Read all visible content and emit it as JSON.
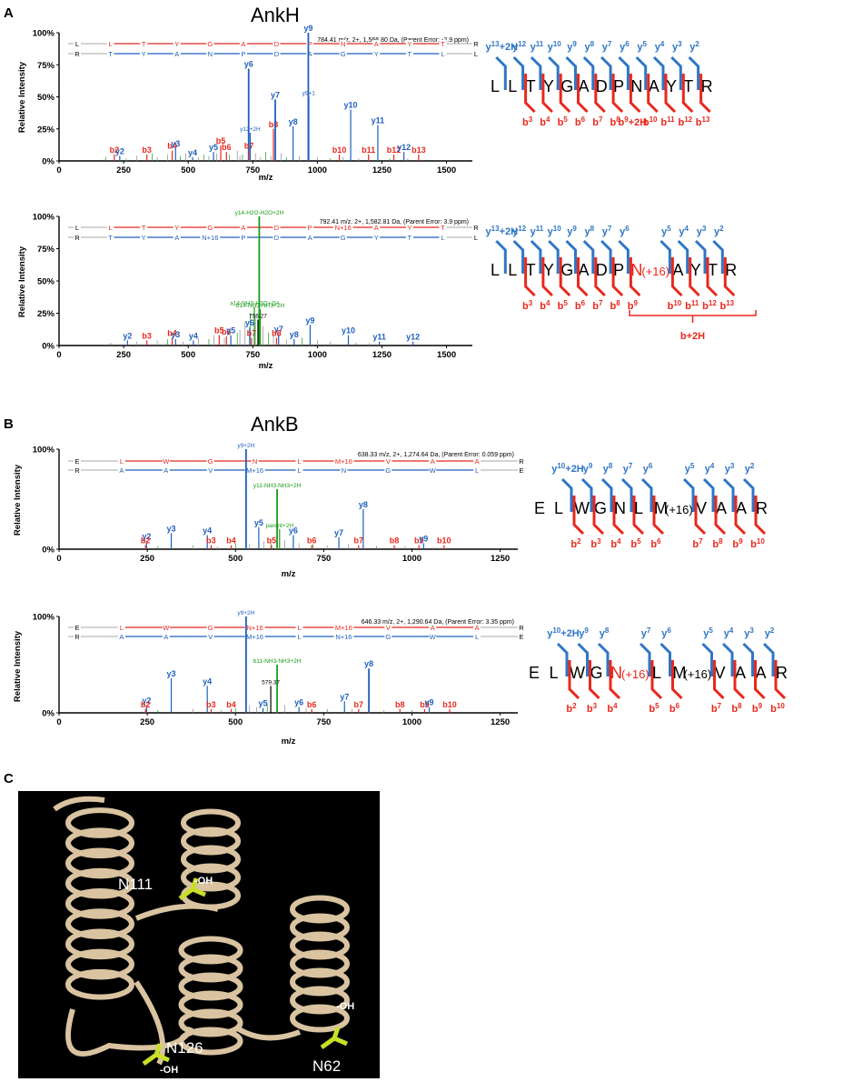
{
  "panel_labels": [
    "A",
    "B",
    "C"
  ],
  "section_titles": {
    "ankh": "AnkH",
    "ankb": "AnkB"
  },
  "colors": {
    "blue": "#1f5fbf",
    "red": "#e8281e",
    "green": "#1a9a1a",
    "grey": "#8a8a8a",
    "fragment_blue": "#2f76c5",
    "fragment_red": "#e8281e"
  },
  "axis_common": {
    "ylabel": "Relative Intensity",
    "xlabel": "m/z",
    "yticks": [
      "0%",
      "25%",
      "50%",
      "75%",
      "100%"
    ]
  },
  "chart_data": [
    {
      "type": "bar",
      "id": "ankh-top",
      "xlabel": "m/z",
      "ylabel": "Relative Intensity",
      "xlim": [
        0,
        1600
      ],
      "ylim": [
        0,
        100
      ],
      "xticks": [
        0,
        250,
        500,
        750,
        1000,
        1250,
        1500
      ],
      "yticks": [
        "0%",
        "25%",
        "50%",
        "75%",
        "100%"
      ],
      "header_text": "784.41 m/z, 2+, 1,566.80 Da,  (Parent Error: -2.9 ppm)",
      "b_row": [
        "L",
        "L",
        "T",
        "Y",
        "G",
        "A",
        "D",
        "P",
        "N",
        "A",
        "Y",
        "T",
        "R"
      ],
      "y_row": [
        "R",
        "T",
        "Y",
        "A",
        "N",
        "P",
        "D",
        "A",
        "G",
        "Y",
        "T",
        "L",
        "L"
      ],
      "peaks": [
        {
          "mz": 214,
          "i": 5,
          "label": "b2",
          "s": "b"
        },
        {
          "mz": 235,
          "i": 4,
          "label": "y2",
          "s": "y"
        },
        {
          "mz": 340,
          "i": 5,
          "label": "b3",
          "s": "b"
        },
        {
          "mz": 438,
          "i": 8,
          "label": "b4",
          "s": "b"
        },
        {
          "mz": 451,
          "i": 10,
          "label": "y3",
          "s": "y"
        },
        {
          "mz": 517,
          "i": 3,
          "label": "y4",
          "s": "y"
        },
        {
          "mz": 598,
          "i": 7,
          "label": "y5",
          "s": "y"
        },
        {
          "mz": 626,
          "i": 12,
          "label": "b5",
          "s": "b"
        },
        {
          "mz": 648,
          "i": 7,
          "label": "b6",
          "s": "b"
        },
        {
          "mz": 734,
          "i": 72,
          "label": "y6",
          "s": "y"
        },
        {
          "mz": 735,
          "i": 8,
          "label": "b7",
          "s": "b"
        },
        {
          "mz": 740,
          "i": 22,
          "label": "y12+2H",
          "s": "y"
        },
        {
          "mz": 830,
          "i": 25,
          "label": "b8",
          "s": "b"
        },
        {
          "mz": 837,
          "i": 48,
          "label": "y7",
          "s": "y"
        },
        {
          "mz": 906,
          "i": 27,
          "label": "y8",
          "s": "y"
        },
        {
          "mz": 965,
          "i": 100,
          "label": "y9",
          "s": "y"
        },
        {
          "mz": 966,
          "i": 50,
          "label": "y9+1",
          "s": "y"
        },
        {
          "mz": 1085,
          "i": 5,
          "label": "b10",
          "s": "b"
        },
        {
          "mz": 1129,
          "i": 40,
          "label": "y10",
          "s": "y"
        },
        {
          "mz": 1198,
          "i": 5,
          "label": "b11",
          "s": "b"
        },
        {
          "mz": 1234,
          "i": 28,
          "label": "y11",
          "s": "y"
        },
        {
          "mz": 1296,
          "i": 5,
          "label": "b12",
          "s": "b"
        },
        {
          "mz": 1335,
          "i": 7,
          "label": "y12",
          "s": "y"
        },
        {
          "mz": 1392,
          "i": 5,
          "label": "b13",
          "s": "b"
        }
      ],
      "noise": [
        [
          180,
          3
        ],
        [
          260,
          2
        ],
        [
          300,
          4
        ],
        [
          360,
          6
        ],
        [
          380,
          3
        ],
        [
          420,
          5
        ],
        [
          470,
          4
        ],
        [
          490,
          6
        ],
        [
          540,
          3
        ],
        [
          560,
          5
        ],
        [
          580,
          4
        ],
        [
          610,
          6
        ],
        [
          660,
          5
        ],
        [
          690,
          8
        ],
        [
          700,
          4
        ],
        [
          710,
          5
        ],
        [
          760,
          6
        ],
        [
          780,
          3
        ],
        [
          800,
          7
        ],
        [
          820,
          4
        ],
        [
          860,
          6
        ],
        [
          880,
          3
        ],
        [
          930,
          4
        ],
        [
          1000,
          3
        ],
        [
          1050,
          2
        ],
        [
          1100,
          3
        ],
        [
          1160,
          2
        ],
        [
          1280,
          2
        ],
        [
          1350,
          2
        ]
      ]
    },
    {
      "type": "bar",
      "id": "ankh-bottom",
      "xlabel": "m/z",
      "ylabel": "Relative Intensity",
      "xlim": [
        0,
        1600
      ],
      "ylim": [
        0,
        100
      ],
      "xticks": [
        0,
        250,
        500,
        750,
        1000,
        1250,
        1500
      ],
      "yticks": [
        "0%",
        "25%",
        "50%",
        "75%",
        "100%"
      ],
      "header_text": "792.41 m/z, 2+, 1,582.81 Da,  (Parent Error: 3.9 ppm)",
      "b_row": [
        "L",
        "L",
        "T",
        "Y",
        "G",
        "A",
        "D",
        "P",
        "N+16",
        "A",
        "Y",
        "T",
        "R"
      ],
      "y_row": [
        "R",
        "T",
        "Y",
        "A",
        "N+16",
        "P",
        "D",
        "A",
        "G",
        "Y",
        "T",
        "L",
        "L"
      ],
      "peaks": [
        {
          "mz": 265,
          "i": 4,
          "label": "y2",
          "s": "y"
        },
        {
          "mz": 340,
          "i": 4,
          "label": "b3",
          "s": "b"
        },
        {
          "mz": 438,
          "i": 6,
          "label": "b4",
          "s": "b"
        },
        {
          "mz": 451,
          "i": 5,
          "label": "y3",
          "s": "y"
        },
        {
          "mz": 520,
          "i": 4,
          "label": "y4",
          "s": "y"
        },
        {
          "mz": 620,
          "i": 8,
          "label": "b5",
          "s": "b"
        },
        {
          "mz": 648,
          "i": 7,
          "label": "b6",
          "s": "b"
        },
        {
          "mz": 665,
          "i": 8,
          "label": "y5",
          "s": "y"
        },
        {
          "mz": 738,
          "i": 14,
          "label": "y6",
          "s": "y"
        },
        {
          "mz": 745,
          "i": 6,
          "label": "b7",
          "s": "b"
        },
        {
          "mz": 775,
          "i": 100,
          "label": "y14-H2O-H2O+2H",
          "s": "g"
        },
        {
          "mz": 756,
          "i": 30,
          "label": "a14-NH3-H2O+2H",
          "s": "g"
        },
        {
          "mz": 779,
          "i": 28,
          "label": "b14-NH3-NH3+2H",
          "s": "g"
        },
        {
          "mz": 770,
          "i": 20,
          "label": "756.27",
          "s": "k"
        },
        {
          "mz": 850,
          "i": 9,
          "label": "y7",
          "s": "y"
        },
        {
          "mz": 842,
          "i": 6,
          "label": "b8",
          "s": "b"
        },
        {
          "mz": 910,
          "i": 5,
          "label": "y8",
          "s": "y"
        },
        {
          "mz": 972,
          "i": 16,
          "label": "y9",
          "s": "y"
        },
        {
          "mz": 1120,
          "i": 8,
          "label": "y10",
          "s": "y"
        },
        {
          "mz": 1240,
          "i": 3,
          "label": "y11",
          "s": "y"
        },
        {
          "mz": 1370,
          "i": 3,
          "label": "y12",
          "s": "y"
        }
      ],
      "noise": [
        [
          200,
          2
        ],
        [
          300,
          3
        ],
        [
          380,
          4
        ],
        [
          420,
          5
        ],
        [
          480,
          3
        ],
        [
          540,
          6
        ],
        [
          580,
          5
        ],
        [
          600,
          8
        ],
        [
          640,
          6
        ],
        [
          690,
          10
        ],
        [
          700,
          12
        ],
        [
          720,
          18
        ],
        [
          740,
          25
        ],
        [
          760,
          22
        ],
        [
          790,
          15
        ],
        [
          810,
          10
        ],
        [
          830,
          8
        ],
        [
          880,
          5
        ],
        [
          940,
          6
        ],
        [
          1000,
          4
        ],
        [
          1050,
          3
        ],
        [
          1150,
          2
        ],
        [
          1200,
          2
        ]
      ]
    },
    {
      "type": "bar",
      "id": "ankb-top",
      "xlabel": "m/z",
      "ylabel": "Relative Intensity",
      "xlim": [
        0,
        1300
      ],
      "ylim": [
        0,
        100
      ],
      "xticks": [
        0,
        250,
        500,
        750,
        1000,
        1250
      ],
      "yticks": [
        "0%",
        "100%"
      ],
      "header_text": "638.33 m/z, 2+, 1,274.64 Da,  (Parent Error: 0.059 ppm)",
      "b_row": [
        "E",
        "L",
        "W",
        "G",
        "N",
        "L",
        "M+16",
        "V",
        "A",
        "A",
        "R"
      ],
      "y_row": [
        "R",
        "A",
        "A",
        "V",
        "M+16",
        "L",
        "N",
        "G",
        "W",
        "L",
        "E"
      ],
      "peaks": [
        {
          "mz": 248,
          "i": 8,
          "label": "y2",
          "s": "y"
        },
        {
          "mz": 245,
          "i": 4,
          "label": "b2",
          "s": "b"
        },
        {
          "mz": 318,
          "i": 16,
          "label": "y3",
          "s": "y"
        },
        {
          "mz": 420,
          "i": 14,
          "label": "y4",
          "s": "y"
        },
        {
          "mz": 431,
          "i": 4,
          "label": "b3",
          "s": "b"
        },
        {
          "mz": 488,
          "i": 4,
          "label": "b4",
          "s": "b"
        },
        {
          "mz": 530,
          "i": 100,
          "label": "y9+2H",
          "s": "y"
        },
        {
          "mz": 566,
          "i": 22,
          "label": "y5",
          "s": "y"
        },
        {
          "mz": 602,
          "i": 4,
          "label": "b5",
          "s": "b"
        },
        {
          "mz": 618,
          "i": 60,
          "label": "y11-NH3-NH3+2H",
          "s": "g"
        },
        {
          "mz": 625,
          "i": 20,
          "label": "parent+2H",
          "s": "g"
        },
        {
          "mz": 664,
          "i": 14,
          "label": "y6",
          "s": "y"
        },
        {
          "mz": 716,
          "i": 4,
          "label": "b6",
          "s": "b"
        },
        {
          "mz": 793,
          "i": 12,
          "label": "y7",
          "s": "y"
        },
        {
          "mz": 849,
          "i": 4,
          "label": "b7",
          "s": "b"
        },
        {
          "mz": 862,
          "i": 40,
          "label": "y8",
          "s": "y"
        },
        {
          "mz": 950,
          "i": 4,
          "label": "b8",
          "s": "b"
        },
        {
          "mz": 1020,
          "i": 4,
          "label": "b9",
          "s": "b"
        },
        {
          "mz": 1033,
          "i": 6,
          "label": "y9",
          "s": "y"
        },
        {
          "mz": 1091,
          "i": 4,
          "label": "b10",
          "s": "b"
        }
      ],
      "noise": [
        [
          280,
          3
        ],
        [
          380,
          4
        ],
        [
          450,
          3
        ],
        [
          500,
          6
        ],
        [
          540,
          5
        ],
        [
          580,
          8
        ],
        [
          600,
          10
        ],
        [
          640,
          9
        ],
        [
          680,
          6
        ],
        [
          720,
          5
        ],
        [
          760,
          4
        ],
        [
          820,
          5
        ],
        [
          900,
          3
        ],
        [
          980,
          3
        ],
        [
          1060,
          2
        ]
      ]
    },
    {
      "type": "bar",
      "id": "ankb-bottom",
      "xlabel": "m/z",
      "ylabel": "Relative Intensity",
      "xlim": [
        0,
        1300
      ],
      "ylim": [
        0,
        100
      ],
      "xticks": [
        0,
        250,
        500,
        750,
        1000,
        1250
      ],
      "yticks": [
        "0%",
        "100%"
      ],
      "header_text": "646.33 m/z, 2+, 1,290.64 Da,  (Parent Error: 3.35 ppm)",
      "b_row": [
        "E",
        "L",
        "W",
        "G",
        "N+16",
        "L",
        "M+16",
        "V",
        "A",
        "A",
        "R"
      ],
      "y_row": [
        "R",
        "A",
        "A",
        "V",
        "M+16",
        "L",
        "N+16",
        "G",
        "W",
        "L",
        "E"
      ],
      "peaks": [
        {
          "mz": 248,
          "i": 8,
          "label": "y2",
          "s": "y"
        },
        {
          "mz": 245,
          "i": 4,
          "label": "b2",
          "s": "b"
        },
        {
          "mz": 318,
          "i": 36,
          "label": "y3",
          "s": "y"
        },
        {
          "mz": 420,
          "i": 28,
          "label": "y4",
          "s": "y"
        },
        {
          "mz": 431,
          "i": 4,
          "label": "b3",
          "s": "b"
        },
        {
          "mz": 488,
          "i": 4,
          "label": "b4",
          "s": "b"
        },
        {
          "mz": 530,
          "i": 100,
          "label": "y9+2H",
          "s": "y"
        },
        {
          "mz": 578,
          "i": 5,
          "label": "y5",
          "s": "y"
        },
        {
          "mz": 618,
          "i": 50,
          "label": "b11-NH3-NH3+2H",
          "s": "g"
        },
        {
          "mz": 600,
          "i": 28,
          "label": "579.37",
          "s": "k"
        },
        {
          "mz": 680,
          "i": 6,
          "label": "y6",
          "s": "y"
        },
        {
          "mz": 716,
          "i": 4,
          "label": "b6",
          "s": "b"
        },
        {
          "mz": 809,
          "i": 12,
          "label": "y7",
          "s": "y"
        },
        {
          "mz": 849,
          "i": 4,
          "label": "b7",
          "s": "b"
        },
        {
          "mz": 878,
          "i": 46,
          "label": "y8",
          "s": "y"
        },
        {
          "mz": 966,
          "i": 4,
          "label": "b8",
          "s": "b"
        },
        {
          "mz": 1036,
          "i": 4,
          "label": "b9",
          "s": "b"
        },
        {
          "mz": 1049,
          "i": 6,
          "label": "y9",
          "s": "y"
        },
        {
          "mz": 1107,
          "i": 4,
          "label": "b10",
          "s": "b"
        }
      ],
      "noise": [
        [
          280,
          3
        ],
        [
          380,
          4
        ],
        [
          460,
          3
        ],
        [
          500,
          5
        ],
        [
          540,
          8
        ],
        [
          560,
          6
        ],
        [
          590,
          10
        ],
        [
          640,
          8
        ],
        [
          700,
          5
        ],
        [
          760,
          4
        ],
        [
          830,
          4
        ],
        [
          920,
          3
        ],
        [
          1000,
          3
        ]
      ]
    }
  ],
  "fragment_maps": [
    {
      "id": "fm1",
      "seq": [
        "L",
        "L",
        "T",
        "Y",
        "G",
        "A",
        "D",
        "P",
        "N",
        "A",
        "Y",
        "T",
        "R"
      ],
      "mod_index": -1,
      "y_labels": [
        "y13+2H",
        "y12",
        "y11",
        "y10",
        "y9",
        "y8",
        "y7",
        "y6",
        "y5",
        "y4",
        "y3",
        "y2"
      ],
      "b_labels": [
        "b3",
        "b4",
        "b5",
        "b6",
        "b7",
        "b8",
        "b9+2H",
        "b10",
        "b11",
        "b12",
        "b13"
      ]
    },
    {
      "id": "fm2",
      "seq": [
        "L",
        "L",
        "T",
        "Y",
        "G",
        "A",
        "D",
        "P",
        "N(+16)",
        "A",
        "Y",
        "T",
        "R"
      ],
      "mod_index": 8,
      "y_labels": [
        "y13+2H",
        "y12",
        "y11",
        "y10",
        "y9",
        "y8",
        "y7",
        "y6",
        "y5",
        "y4",
        "y3",
        "y2"
      ],
      "b_labels": [
        "b3",
        "b4",
        "b5",
        "b6",
        "b7",
        "b8",
        "b9",
        "b10",
        "b11",
        "b12",
        "b13"
      ],
      "bracket_label": "b+2H"
    },
    {
      "id": "fm3",
      "seq": [
        "E",
        "L",
        "W",
        "G",
        "N",
        "L",
        "M(+16)",
        "V",
        "A",
        "A",
        "R"
      ],
      "mod_index": -1,
      "y_labels": [
        "y10+2H",
        "y9",
        "y8",
        "y7",
        "y6",
        "y5",
        "y4",
        "y3",
        "y2"
      ],
      "b_labels": [
        "b2",
        "b3",
        "b4",
        "b5",
        "b6",
        "b7",
        "b8",
        "b9",
        "b10"
      ]
    },
    {
      "id": "fm4",
      "seq": [
        "E",
        "L",
        "W",
        "G",
        "N(+16)",
        "L",
        "M(+16)",
        "V",
        "A",
        "A",
        "R"
      ],
      "mod_index": 4,
      "y_labels": [
        "y10+2H",
        "y9",
        "y8",
        "y7",
        "y6",
        "y5",
        "y4",
        "y3",
        "y2"
      ],
      "b_labels": [
        "b2",
        "b3",
        "b4",
        "b5",
        "b6",
        "b7",
        "b8",
        "b9",
        "b10"
      ]
    }
  ],
  "structure": {
    "labels": [
      "N111",
      "N126",
      "N62"
    ],
    "oh": "-OH"
  }
}
